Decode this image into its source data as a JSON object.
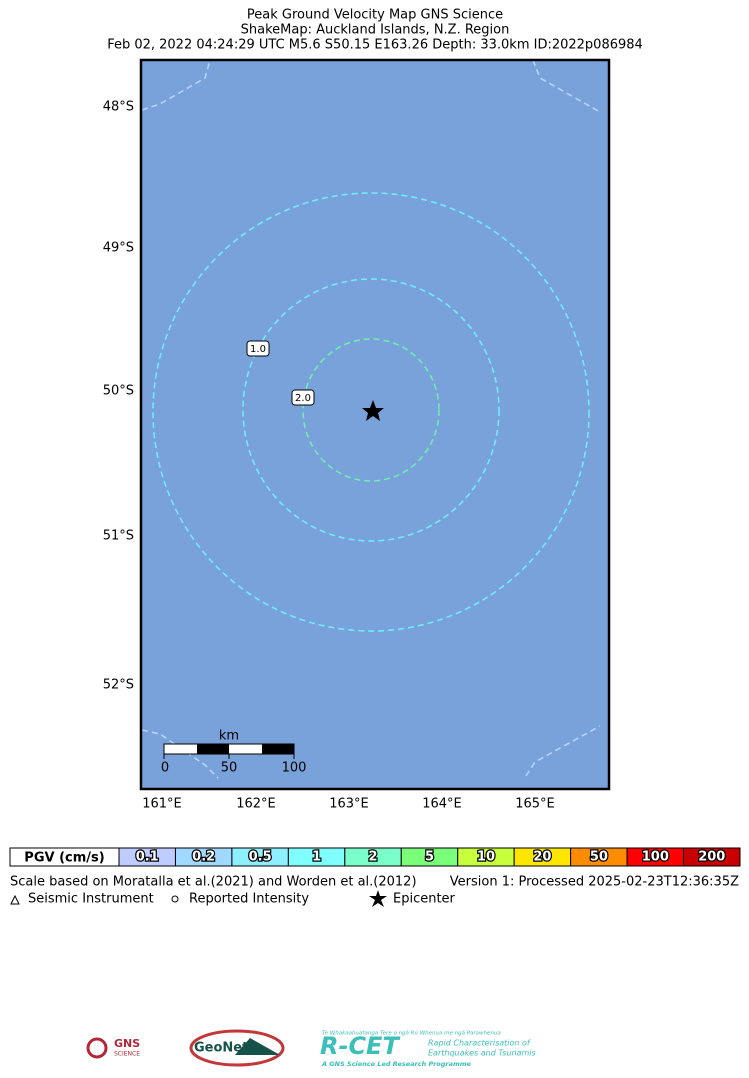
{
  "header": {
    "title": "Peak Ground Velocity Map GNS Science",
    "subtitle": "ShakeMap: Auckland Islands, N.Z. Region",
    "event": "Feb 02, 2022 04:24:29 UTC M5.6 S50.15 E163.26 Depth: 33.0km ID:2022p086984"
  },
  "map": {
    "lat_labels": [
      "48°S",
      "49°S",
      "50°S",
      "51°S",
      "52°S"
    ],
    "lon_labels": [
      "161°E",
      "162°E",
      "163°E",
      "164°E",
      "165°E"
    ],
    "contour_labels": [
      "1.0",
      "2.0"
    ],
    "scale_bar": {
      "unit": "km",
      "labels": [
        "0",
        "50",
        "100"
      ]
    }
  },
  "legend": {
    "title": "PGV (cm/s)",
    "items": [
      {
        "label": "0.1",
        "color": "#bfccff"
      },
      {
        "label": "0.2",
        "color": "#a0d8ff"
      },
      {
        "label": "0.5",
        "color": "#8ef0ff"
      },
      {
        "label": "1",
        "color": "#80ffff"
      },
      {
        "label": "2",
        "color": "#7affc8"
      },
      {
        "label": "5",
        "color": "#7aff7a"
      },
      {
        "label": "10",
        "color": "#c8ff3c"
      },
      {
        "label": "20",
        "color": "#ffe600"
      },
      {
        "label": "50",
        "color": "#ff8c00"
      },
      {
        "label": "100",
        "color": "#ff0000"
      },
      {
        "label": "200",
        "color": "#c80000"
      }
    ]
  },
  "footer": {
    "scale_note": "Scale based on Moratalla et al.(2021) and Worden et al.(2012)",
    "version": "Version 1: Processed 2025-02-23T12:36:35Z",
    "symbols": [
      "Seismic Instrument",
      "Reported Intensity",
      "Epicenter"
    ]
  },
  "logos": {
    "gns": "GNS",
    "gns_sub": "SCIENCE",
    "geonet": "GeoNet",
    "rcet": "R-CET",
    "rcet_top": "Te Whakaahuatanga Tere o ngā Rū Whenua me ngā Parawhenua",
    "rcet_line1": "Rapid Characterisation of",
    "rcet_line2": "Earthquakes and Tsunamis",
    "rcet_bottom": "A GNS Science Led Research Programme"
  }
}
